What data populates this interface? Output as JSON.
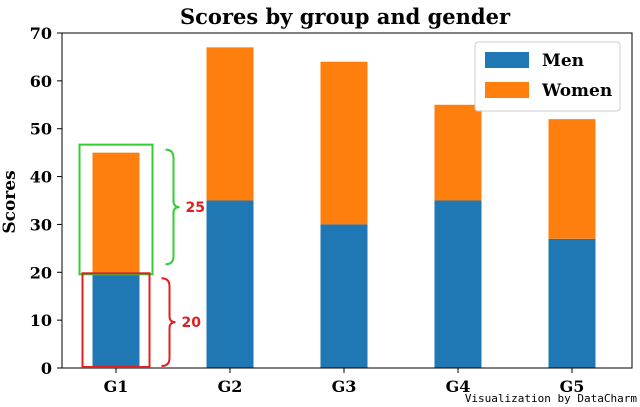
{
  "chart_data": {
    "type": "bar",
    "stacked": true,
    "title": "Scores by group and gender",
    "xlabel": "",
    "ylabel": "Scores",
    "ylim": [
      0,
      70
    ],
    "yticks": [
      0,
      10,
      20,
      30,
      40,
      50,
      60,
      70
    ],
    "categories": [
      "G1",
      "G2",
      "G3",
      "G4",
      "G5"
    ],
    "series": [
      {
        "name": "Men",
        "values": [
          20,
          35,
          30,
          35,
          27
        ],
        "color": "#1f77b4"
      },
      {
        "name": "Women",
        "values": [
          25,
          32,
          34,
          20,
          25
        ],
        "color": "#ff7f0e"
      }
    ],
    "legend": "top-right",
    "grid": false,
    "annotations": [
      {
        "label": "25",
        "target": "G1 Women segment",
        "color": "#33cc33"
      },
      {
        "label": "20",
        "target": "G1 Men segment",
        "color": "#e02020"
      }
    ]
  },
  "watermark": "Visualization by DataCharm"
}
